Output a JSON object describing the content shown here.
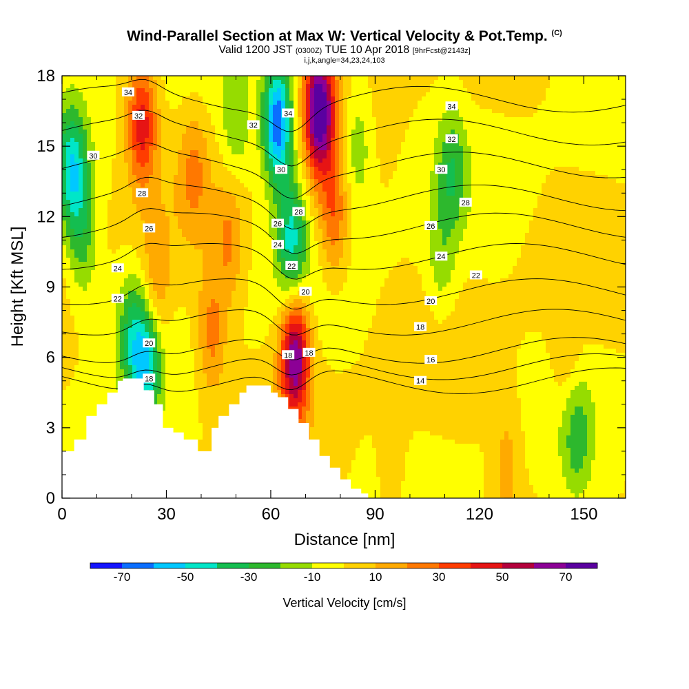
{
  "title": {
    "main": "Wind-Parallel Section at Max W: Vertical Velocity & Pot.Temp.",
    "copyright": "(C)",
    "valid_a": "Valid 1200 JST",
    "valid_b": "(0300Z)",
    "valid_c": "TUE 10 Apr 2018",
    "valid_d": "[9hrFcst@2143z]",
    "indices": "i,j,k,angle=34,23,24,103"
  },
  "chart_data": {
    "type": "heatmap",
    "xlabel": "Distance [nm]",
    "ylabel": "Height [Kft MSL]",
    "xlim": [
      0,
      162
    ],
    "ylim": [
      0,
      18
    ],
    "x_ticks": [
      "0",
      "30",
      "60",
      "90",
      "120",
      "150"
    ],
    "y_ticks": [
      "0",
      "3",
      "6",
      "9",
      "12",
      "15",
      "18"
    ],
    "grid": false,
    "colorbar": {
      "label": "Vertical Velocity [cm/s]",
      "tick_labels": [
        "-70",
        "-50",
        "-30",
        "-10",
        "10",
        "30",
        "50",
        "70"
      ],
      "bins": [
        -80,
        -70,
        -60,
        -50,
        -40,
        -30,
        -20,
        -10,
        0,
        10,
        20,
        30,
        40,
        50,
        60,
        70,
        80
      ],
      "colors": [
        "#1414ff",
        "#0a6eff",
        "#00c8ff",
        "#00e6c8",
        "#14be50",
        "#2db82d",
        "#96dc00",
        "#ffff00",
        "#ffd200",
        "#ffaa00",
        "#ff7800",
        "#ff3c00",
        "#e61414",
        "#b4003c",
        "#8c0096",
        "#5a00a0"
      ]
    },
    "velocity_features": [
      {
        "x": 3,
        "z": 14,
        "w": -45
      },
      {
        "x": 6,
        "z": 11,
        "w": -22
      },
      {
        "x": 23,
        "z": 16,
        "w": 45
      },
      {
        "x": 27,
        "z": 9,
        "w": 20
      },
      {
        "x": 20,
        "z": 7,
        "w": -25
      },
      {
        "x": 24,
        "z": 5.8,
        "w": -45
      },
      {
        "x": 38,
        "z": 14,
        "w": 20
      },
      {
        "x": 48,
        "z": 11,
        "w": 20
      },
      {
        "x": 43,
        "z": 7,
        "w": 25
      },
      {
        "x": 50,
        "z": 16,
        "w": -18
      },
      {
        "x": 62,
        "z": 16,
        "w": -70
      },
      {
        "x": 66,
        "z": 11,
        "w": -40
      },
      {
        "x": 67,
        "z": 6,
        "w": 70
      },
      {
        "x": 74,
        "z": 16.5,
        "w": 80
      },
      {
        "x": 78,
        "z": 12,
        "w": 30
      },
      {
        "x": 85,
        "z": 15,
        "w": -20
      },
      {
        "x": 112,
        "z": 14,
        "w": -25
      },
      {
        "x": 109,
        "z": 10,
        "w": -15
      },
      {
        "x": 148,
        "z": 2.6,
        "w": -22
      },
      {
        "x": 145,
        "z": 6,
        "w": 12
      },
      {
        "x": 128,
        "z": 1.5,
        "w": 15
      },
      {
        "x": 95,
        "z": 1,
        "w": 10
      }
    ],
    "theta_contours": [
      {
        "level": 14,
        "z": 5
      },
      {
        "level": 16,
        "z": 5.6
      },
      {
        "level": 18,
        "z": 6.3
      },
      {
        "level": 20,
        "z": 7.5
      },
      {
        "level": 22,
        "z": 8.8
      },
      {
        "level": 24,
        "z": 10.3
      },
      {
        "level": 26,
        "z": 11.6
      },
      {
        "level": 28,
        "z": 12.8
      },
      {
        "level": 30,
        "z": 14.2
      },
      {
        "level": 32,
        "z": 15.6
      },
      {
        "level": 34,
        "z": 17
      }
    ],
    "theta_labels": [
      {
        "text": "34",
        "x": 19,
        "z": 17.3
      },
      {
        "text": "32",
        "x": 22,
        "z": 16.3
      },
      {
        "text": "30",
        "x": 9,
        "z": 14.6
      },
      {
        "text": "28",
        "x": 23,
        "z": 13
      },
      {
        "text": "26",
        "x": 25,
        "z": 11.5
      },
      {
        "text": "24",
        "x": 16,
        "z": 9.8
      },
      {
        "text": "22",
        "x": 16,
        "z": 8.5
      },
      {
        "text": "20",
        "x": 25,
        "z": 6.6
      },
      {
        "text": "18",
        "x": 25,
        "z": 5.1
      },
      {
        "text": "32",
        "x": 55,
        "z": 15.9
      },
      {
        "text": "34",
        "x": 65,
        "z": 16.4
      },
      {
        "text": "30",
        "x": 63,
        "z": 14
      },
      {
        "text": "28",
        "x": 68,
        "z": 12.2
      },
      {
        "text": "26",
        "x": 62,
        "z": 11.7
      },
      {
        "text": "24",
        "x": 62,
        "z": 10.8
      },
      {
        "text": "22",
        "x": 66,
        "z": 9.9
      },
      {
        "text": "20",
        "x": 70,
        "z": 8.8
      },
      {
        "text": "18",
        "x": 65,
        "z": 6.1
      },
      {
        "text": "18",
        "x": 71,
        "z": 6.2
      },
      {
        "text": "34",
        "x": 112,
        "z": 16.7
      },
      {
        "text": "32",
        "x": 112,
        "z": 15.3
      },
      {
        "text": "30",
        "x": 109,
        "z": 14
      },
      {
        "text": "28",
        "x": 116,
        "z": 12.6
      },
      {
        "text": "26",
        "x": 106,
        "z": 11.6
      },
      {
        "text": "24",
        "x": 109,
        "z": 10.3
      },
      {
        "text": "22",
        "x": 119,
        "z": 9.5
      },
      {
        "text": "20",
        "x": 106,
        "z": 8.4
      },
      {
        "text": "18",
        "x": 103,
        "z": 7.3
      },
      {
        "text": "16",
        "x": 106,
        "z": 5.9
      },
      {
        "text": "14",
        "x": 103,
        "z": 5
      }
    ],
    "terrain": [
      [
        0,
        2.0
      ],
      [
        3.5,
        2.5
      ],
      [
        7,
        3.5
      ],
      [
        10,
        4.0
      ],
      [
        13,
        4.5
      ],
      [
        16,
        5.0
      ],
      [
        17.5,
        5.1
      ],
      [
        22,
        5.1
      ],
      [
        23.5,
        4.6
      ],
      [
        26.5,
        4.0
      ],
      [
        29,
        3.0
      ],
      [
        32,
        2.8
      ],
      [
        35,
        2.5
      ],
      [
        39,
        2.0
      ],
      [
        42,
        2.0
      ],
      [
        43,
        3.0
      ],
      [
        45,
        3.5
      ],
      [
        48,
        4.0
      ],
      [
        51,
        4.5
      ],
      [
        53,
        4.8
      ],
      [
        58,
        4.8
      ],
      [
        60,
        4.5
      ],
      [
        62,
        4.3
      ],
      [
        65,
        3.8
      ],
      [
        68,
        3.2
      ],
      [
        71,
        2.5
      ],
      [
        74,
        1.8
      ],
      [
        77,
        1.3
      ],
      [
        80,
        0.8
      ],
      [
        83,
        0.4
      ],
      [
        86,
        0.2
      ],
      [
        88,
        0
      ]
    ]
  }
}
